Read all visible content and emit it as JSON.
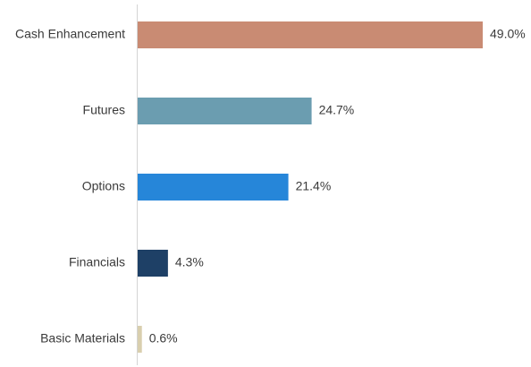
{
  "chart_data": {
    "type": "bar",
    "orientation": "horizontal",
    "categories": [
      "Cash Enhancement",
      "Futures",
      "Options",
      "Financials",
      "Basic Materials"
    ],
    "values": [
      49.0,
      24.7,
      21.4,
      4.3,
      0.6
    ],
    "value_labels": [
      "49.0%",
      "24.7%",
      "21.4%",
      "4.3%",
      "0.6%"
    ],
    "colors": [
      "#c98b73",
      "#6b9db0",
      "#2686d9",
      "#1e4066",
      "#d9cfae"
    ]
  }
}
